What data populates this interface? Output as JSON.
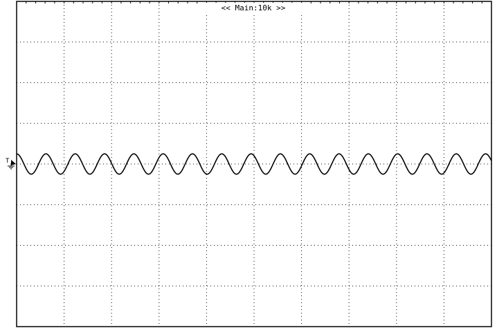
{
  "chart_data": {
    "type": "line",
    "title": "<< Main:10k >>",
    "xlabel": "",
    "ylabel": "",
    "grid": true,
    "grid_style": "dotted",
    "divisions": {
      "x": 10,
      "y": 8
    },
    "xlim": [
      0,
      10
    ],
    "ylim": [
      -4,
      4
    ],
    "series": [
      {
        "color": "#000000",
        "waveform": "sine",
        "cycles": 16.2,
        "amplitude_div": 0.25,
        "offset_div": 0.0
      }
    ],
    "trigger_marker": "T",
    "ground_marker": "ground-icon"
  }
}
